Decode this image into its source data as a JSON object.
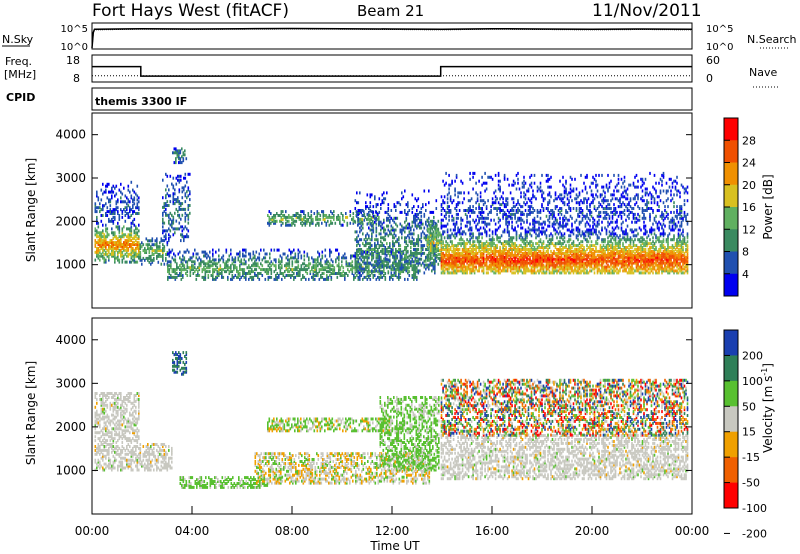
{
  "header": {
    "station": "Fort Hays West (fitACF)",
    "beam": "Beam 21",
    "date": "11/Nov/2011"
  },
  "labels": {
    "nsky": "N.Sky",
    "nsearch": "N.Search",
    "freq": "Freq.",
    "mhz": "[MHz]",
    "nave": "Nave",
    "cpid": "CPID",
    "program": "themis 3300 IF"
  },
  "chart_data": [
    {
      "type": "line",
      "name": "noise",
      "left_ticks": [
        "10^5",
        "10^0"
      ],
      "right_ticks": [
        "10^5",
        "10^0"
      ],
      "x": [
        0.0,
        0.05,
        0.1,
        2,
        4,
        6,
        8,
        10,
        12,
        14,
        16,
        18,
        20,
        22,
        24
      ],
      "nsky_log": [
        0.2,
        3.2,
        3.8,
        3.9,
        3.85,
        3.9,
        3.95,
        3.9,
        3.85,
        3.8,
        3.9,
        3.85,
        3.8,
        3.85,
        3.8
      ],
      "nsearch_log": [
        0.2,
        3.0,
        3.7,
        3.8,
        3.75,
        3.8,
        3.85,
        3.8,
        3.75,
        3.7,
        3.8,
        3.75,
        3.7,
        3.75,
        3.7
      ]
    },
    {
      "type": "line",
      "name": "frequency-nave",
      "left_ticks": [
        "18",
        "8"
      ],
      "right_ticks": [
        "60",
        "0"
      ],
      "freq_steps": [
        [
          0,
          13.7
        ],
        [
          1.95,
          13.7
        ],
        [
          1.95,
          10.2
        ],
        [
          13.95,
          10.2
        ],
        [
          13.95,
          13.7
        ],
        [
          24,
          13.7
        ]
      ],
      "nave_steps": [
        [
          0,
          14
        ],
        [
          24,
          14
        ]
      ],
      "freq_range": [
        8,
        18
      ],
      "nave_range": [
        0,
        60
      ]
    },
    {
      "type": "heatmap",
      "name": "power",
      "xlabel": "",
      "ylabel": "Slant Range [km]",
      "y_ticks": [
        "1000",
        "2000",
        "3000",
        "4000"
      ],
      "ylim": [
        0,
        4500
      ],
      "xlim": [
        0,
        24
      ],
      "colorbar_title": "Power [dB]",
      "colorbar_ticks": [
        "4",
        "8",
        "12",
        "16",
        "20",
        "24",
        "28"
      ],
      "color_scale": [
        "#0000f0",
        "#2050b0",
        "#3a8a60",
        "#60b060",
        "#d8c020",
        "#f09000",
        "#f05000",
        "#ff0000"
      ],
      "regions": [
        {
          "t0": 0.1,
          "t1": 1.9,
          "r0": 1050,
          "r1": 1900,
          "peak": 1450,
          "strength": 0.75
        },
        {
          "t0": 0.1,
          "t1": 1.9,
          "r0": 1900,
          "r1": 2900,
          "peak": 2300,
          "strength": 0.15
        },
        {
          "t0": 1.9,
          "t1": 3.0,
          "r0": 1000,
          "r1": 1600,
          "peak": 1300,
          "strength": 0.45
        },
        {
          "t0": 2.8,
          "t1": 3.9,
          "r0": 1500,
          "r1": 3100,
          "peak": 2200,
          "strength": 0.2
        },
        {
          "t0": 3.2,
          "t1": 3.8,
          "r0": 3300,
          "r1": 3700,
          "peak": 3500,
          "strength": 0.3
        },
        {
          "t0": 3.0,
          "t1": 13.0,
          "r0": 650,
          "r1": 1350,
          "peak": 900,
          "strength": 0.4
        },
        {
          "t0": 7.0,
          "t1": 11.5,
          "r0": 1900,
          "r1": 2250,
          "peak": 2050,
          "strength": 0.45
        },
        {
          "t0": 10.5,
          "t1": 13.8,
          "r0": 800,
          "r1": 2700,
          "peak": 1300,
          "strength": 0.3
        },
        {
          "t0": 13.4,
          "t1": 13.95,
          "r0": 1000,
          "r1": 2100,
          "peak": 1500,
          "strength": 0.55
        },
        {
          "t0": 13.95,
          "t1": 23.8,
          "r0": 800,
          "r1": 1800,
          "peak": 1100,
          "strength": 0.9
        },
        {
          "t0": 13.95,
          "t1": 23.8,
          "r0": 1700,
          "r1": 3100,
          "peak": 2200,
          "strength": 0.12
        }
      ]
    },
    {
      "type": "heatmap",
      "name": "velocity",
      "xlabel": "Time UT",
      "ylabel": "Slant Range [km]",
      "x_ticks": [
        "00:00",
        "04:00",
        "08:00",
        "12:00",
        "16:00",
        "20:00",
        "00:00"
      ],
      "y_ticks": [
        "1000",
        "2000",
        "3000",
        "4000"
      ],
      "ylim": [
        0,
        4500
      ],
      "xlim": [
        0,
        24
      ],
      "colorbar_title": "Velocity [m s",
      "colorbar_unit_sup": "-1",
      "colorbar_ticks": [
        "200",
        "100",
        "50",
        "15",
        "-15",
        "-50",
        "-100",
        "-200"
      ],
      "color_scale": [
        "#1a3fb0",
        "#2f7f58",
        "#58c030",
        "#c8c8c0",
        "#f0a000",
        "#f06000",
        "#ff0000"
      ],
      "regions": [
        {
          "t0": 0.1,
          "t1": 1.9,
          "r0": 1000,
          "r1": 2800,
          "class": "ground"
        },
        {
          "t0": 1.9,
          "t1": 3.2,
          "r0": 1000,
          "r1": 1600,
          "class": "ground"
        },
        {
          "t0": 3.2,
          "t1": 3.8,
          "r0": 3200,
          "r1": 3700,
          "class": "positive"
        },
        {
          "t0": 3.5,
          "t1": 7.0,
          "r0": 600,
          "r1": 850,
          "class": "green"
        },
        {
          "t0": 6.5,
          "t1": 13.5,
          "r0": 700,
          "r1": 1400,
          "class": "mixed-orange"
        },
        {
          "t0": 7.0,
          "t1": 12.0,
          "r0": 1900,
          "r1": 2200,
          "class": "mixed-green"
        },
        {
          "t0": 11.5,
          "t1": 13.9,
          "r0": 1000,
          "r1": 2700,
          "class": "green"
        },
        {
          "t0": 13.95,
          "t1": 23.8,
          "r0": 800,
          "r1": 1800,
          "class": "ground"
        },
        {
          "t0": 13.95,
          "t1": 23.8,
          "r0": 1800,
          "r1": 3100,
          "class": "scatter"
        }
      ]
    }
  ]
}
